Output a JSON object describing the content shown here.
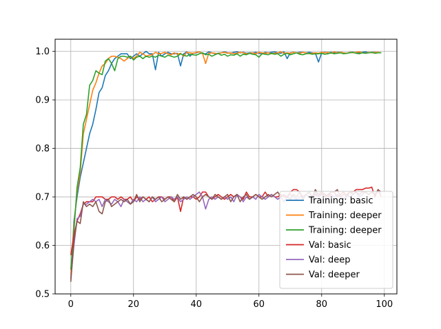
{
  "chart_data": {
    "type": "line",
    "title": "",
    "xlabel": "",
    "ylabel": "",
    "xlim": [
      -5,
      104
    ],
    "ylim": [
      0.5,
      1.025
    ],
    "grid": true,
    "legend_position": "lower-right",
    "x_ticks": [
      0,
      20,
      40,
      60,
      80,
      100
    ],
    "x_tick_labels": [
      "0",
      "20",
      "40",
      "60",
      "80",
      "100"
    ],
    "y_ticks": [
      0.5,
      0.6,
      0.7,
      0.8,
      0.9,
      1.0
    ],
    "y_tick_labels": [
      "0.5",
      "0.6",
      "0.7",
      "0.8",
      "0.9",
      "1.0"
    ],
    "series": [
      {
        "name": "Training: basic",
        "color": "#1f77b4",
        "values": [
          0.53,
          0.65,
          0.7,
          0.74,
          0.77,
          0.8,
          0.83,
          0.85,
          0.88,
          0.915,
          0.925,
          0.95,
          0.96,
          0.975,
          0.985,
          0.99,
          0.995,
          0.995,
          0.995,
          0.985,
          0.99,
          0.995,
          0.99,
          0.995,
          1.0,
          0.995,
          0.995,
          0.962,
          0.998,
          0.99,
          0.995,
          0.998,
          0.995,
          0.995,
          0.996,
          0.97,
          0.995,
          0.999,
          0.99,
          0.996,
          0.997,
          0.999,
          0.995,
          0.995,
          0.999,
          0.997,
          0.995,
          0.996,
          0.997,
          0.999,
          0.997,
          0.996,
          0.998,
          0.999,
          0.997,
          0.998,
          0.996,
          0.997,
          0.997,
          0.998,
          0.996,
          0.995,
          0.998,
          0.997,
          0.998,
          0.999,
          0.997,
          0.996,
          0.999,
          0.985,
          0.997,
          0.998,
          0.997,
          0.998,
          0.998,
          0.997,
          0.998,
          0.997,
          0.996,
          0.978,
          0.997,
          0.998,
          0.997,
          0.998,
          0.997,
          0.998,
          0.998,
          0.997,
          0.996,
          0.998,
          0.998,
          0.997,
          0.997,
          0.998,
          0.999,
          0.997,
          0.998,
          0.998,
          0.997,
          0.997
        ]
      },
      {
        "name": "Training: deeper",
        "color": "#ff7f0e",
        "values": [
          0.54,
          0.64,
          0.71,
          0.75,
          0.83,
          0.86,
          0.89,
          0.92,
          0.935,
          0.955,
          0.97,
          0.975,
          0.985,
          0.99,
          0.99,
          0.988,
          0.985,
          0.98,
          0.985,
          0.99,
          0.985,
          0.99,
          0.998,
          0.995,
          0.99,
          0.992,
          0.993,
          0.998,
          0.995,
          0.996,
          0.998,
          0.995,
          0.993,
          0.997,
          0.994,
          0.996,
          0.99,
          0.998,
          0.997,
          0.996,
          0.998,
          0.999,
          0.996,
          0.975,
          0.996,
          0.997,
          0.996,
          0.995,
          0.997,
          0.998,
          0.996,
          0.997,
          0.995,
          0.996,
          0.998,
          0.997,
          0.995,
          0.996,
          0.997,
          0.995,
          0.998,
          0.997,
          0.996,
          0.997,
          0.995,
          0.996,
          0.997,
          0.999,
          0.996,
          0.997,
          0.996,
          0.998,
          0.997,
          0.996,
          0.998,
          0.997,
          0.995,
          0.996,
          0.997,
          0.996,
          0.998,
          0.997,
          0.998,
          0.996,
          0.999,
          0.997,
          0.998,
          0.997,
          0.996,
          0.998,
          0.997,
          0.998,
          0.999,
          0.997,
          0.996,
          0.998,
          0.997,
          0.998,
          0.998,
          0.997
        ]
      },
      {
        "name": "Training: deeper",
        "color": "#2ca02c",
        "values": [
          0.55,
          0.63,
          0.72,
          0.76,
          0.85,
          0.87,
          0.93,
          0.94,
          0.96,
          0.955,
          0.952,
          0.98,
          0.985,
          0.975,
          0.96,
          0.985,
          0.99,
          0.99,
          0.988,
          0.99,
          0.982,
          0.988,
          0.99,
          0.985,
          0.99,
          0.988,
          0.99,
          0.988,
          0.992,
          0.99,
          0.988,
          0.992,
          0.99,
          0.988,
          0.99,
          0.995,
          0.992,
          0.99,
          0.994,
          0.993,
          0.992,
          0.995,
          0.997,
          0.993,
          0.994,
          0.99,
          0.993,
          0.996,
          0.992,
          0.994,
          0.99,
          0.993,
          0.992,
          0.995,
          0.99,
          0.994,
          0.993,
          0.996,
          0.994,
          0.993,
          0.988,
          0.995,
          0.994,
          0.993,
          0.996,
          0.994,
          0.995,
          0.99,
          0.994,
          0.996,
          0.993,
          0.995,
          0.997,
          0.994,
          0.993,
          0.995,
          0.996,
          0.994,
          0.995,
          0.995,
          0.996,
          0.994,
          0.995,
          0.997,
          0.995,
          0.996,
          0.997,
          0.995,
          0.996,
          0.997,
          0.998,
          0.996,
          0.995,
          0.997,
          0.996,
          0.997,
          0.998,
          0.996,
          0.997,
          0.997
        ]
      },
      {
        "name": "Val: basic",
        "color": "#d62728",
        "values": [
          0.58,
          0.62,
          0.65,
          0.665,
          0.685,
          0.69,
          0.69,
          0.69,
          0.7,
          0.7,
          0.7,
          0.695,
          0.695,
          0.7,
          0.7,
          0.695,
          0.7,
          0.695,
          0.695,
          0.7,
          0.69,
          0.7,
          0.695,
          0.7,
          0.695,
          0.7,
          0.69,
          0.695,
          0.7,
          0.7,
          0.695,
          0.7,
          0.7,
          0.69,
          0.7,
          0.67,
          0.7,
          0.695,
          0.7,
          0.7,
          0.695,
          0.7,
          0.71,
          0.71,
          0.7,
          0.695,
          0.7,
          0.705,
          0.7,
          0.695,
          0.7,
          0.705,
          0.7,
          0.705,
          0.7,
          0.695,
          0.71,
          0.7,
          0.7,
          0.705,
          0.7,
          0.7,
          0.71,
          0.7,
          0.705,
          0.7,
          0.7,
          0.705,
          0.7,
          0.7,
          0.71,
          0.715,
          0.715,
          0.71,
          0.7,
          0.705,
          0.71,
          0.7,
          0.705,
          0.7,
          0.71,
          0.705,
          0.7,
          0.71,
          0.71,
          0.7,
          0.705,
          0.71,
          0.7,
          0.71,
          0.71,
          0.715,
          0.715,
          0.715,
          0.718,
          0.718,
          0.72,
          0.7,
          0.715,
          0.7
        ]
      },
      {
        "name": "Val: deep",
        "color": "#9467bd",
        "values": [
          0.53,
          0.6,
          0.655,
          0.66,
          0.685,
          0.685,
          0.69,
          0.695,
          0.69,
          0.695,
          0.68,
          0.695,
          0.69,
          0.685,
          0.695,
          0.69,
          0.68,
          0.695,
          0.69,
          0.685,
          0.695,
          0.69,
          0.7,
          0.69,
          0.695,
          0.69,
          0.7,
          0.69,
          0.695,
          0.7,
          0.69,
          0.695,
          0.7,
          0.695,
          0.7,
          0.69,
          0.695,
          0.7,
          0.695,
          0.7,
          0.705,
          0.71,
          0.7,
          0.675,
          0.695,
          0.7,
          0.695,
          0.7,
          0.695,
          0.7,
          0.695,
          0.7,
          0.69,
          0.705,
          0.7,
          0.69,
          0.7,
          0.695,
          0.7,
          0.695,
          0.705,
          0.7,
          0.695,
          0.7,
          0.705,
          0.7,
          0.695,
          0.7,
          0.69,
          0.7,
          0.705,
          0.7,
          0.695,
          0.7,
          0.7,
          0.705,
          0.7,
          0.695,
          0.71,
          0.7,
          0.705,
          0.7,
          0.695,
          0.705,
          0.7,
          0.705,
          0.7,
          0.695,
          0.705,
          0.7,
          0.705,
          0.71,
          0.7,
          0.705,
          0.71,
          0.705,
          0.71,
          0.705,
          0.71,
          0.71
        ]
      },
      {
        "name": "Val: deeper",
        "color": "#8c564b",
        "values": [
          0.525,
          0.61,
          0.65,
          0.645,
          0.69,
          0.68,
          0.685,
          0.68,
          0.69,
          0.67,
          0.665,
          0.69,
          0.695,
          0.68,
          0.685,
          0.69,
          0.695,
          0.69,
          0.695,
          0.685,
          0.69,
          0.705,
          0.69,
          0.7,
          0.695,
          0.69,
          0.7,
          0.695,
          0.7,
          0.69,
          0.695,
          0.7,
          0.695,
          0.69,
          0.705,
          0.695,
          0.7,
          0.695,
          0.7,
          0.705,
          0.7,
          0.69,
          0.7,
          0.705,
          0.7,
          0.695,
          0.705,
          0.7,
          0.695,
          0.7,
          0.705,
          0.69,
          0.7,
          0.705,
          0.69,
          0.7,
          0.705,
          0.695,
          0.7,
          0.705,
          0.7,
          0.695,
          0.7,
          0.705,
          0.7,
          0.705,
          0.71,
          0.7,
          0.705,
          0.7,
          0.695,
          0.705,
          0.7,
          0.71,
          0.695,
          0.705,
          0.71,
          0.7,
          0.715,
          0.705,
          0.71,
          0.7,
          0.705,
          0.71,
          0.71,
          0.715,
          0.7,
          0.705,
          0.705,
          0.71,
          0.705,
          0.71,
          0.705,
          0.71,
          0.71,
          0.705,
          0.71,
          0.705,
          0.715,
          0.71
        ]
      }
    ]
  }
}
